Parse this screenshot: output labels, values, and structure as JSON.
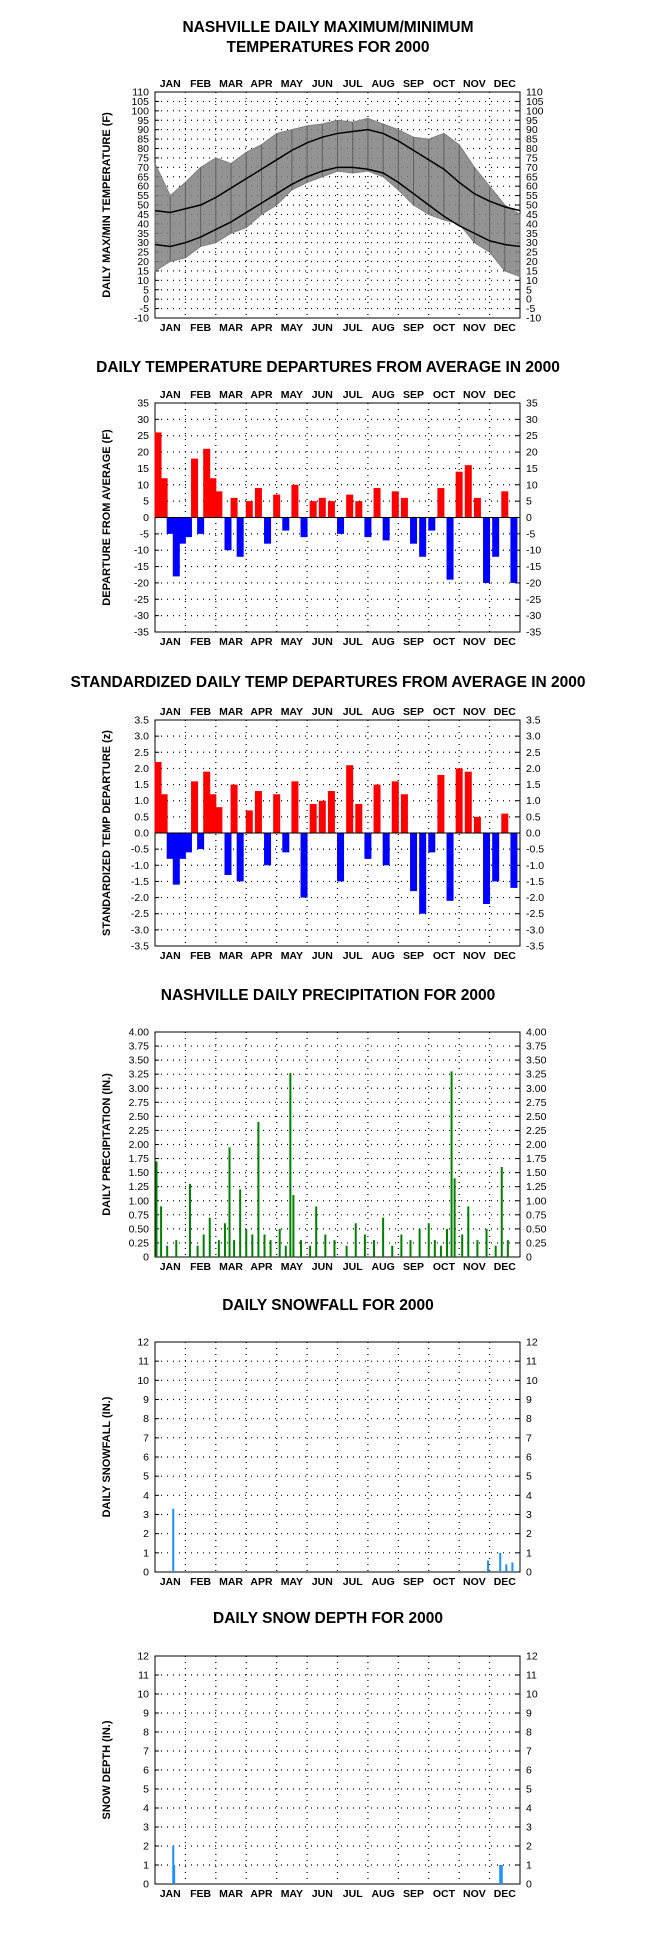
{
  "months": [
    "JAN",
    "FEB",
    "MAR",
    "APR",
    "MAY",
    "JUN",
    "JUL",
    "AUG",
    "SEP",
    "OCT",
    "NOV",
    "DEC"
  ],
  "chart_data": [
    {
      "id": "temp",
      "type": "line",
      "title_lines": [
        "NASHVILLE DAILY MAXIMUM/MINIMUM",
        "TEMPERATURES FOR 2000"
      ],
      "ylabel": "DAILY MAX/MIN TEMPERATURE (F)",
      "ylim": [
        -10,
        110
      ],
      "ticks": [
        "-10",
        "-5",
        "0",
        "5",
        "10",
        "15",
        "20",
        "25",
        "30",
        "35",
        "40",
        "45",
        "50",
        "55",
        "60",
        "65",
        "70",
        "75",
        "80",
        "85",
        "90",
        "95",
        "100",
        "105",
        "110"
      ],
      "grid": true,
      "x_unit": "month",
      "series": [
        {
          "role": "normal-high",
          "color": "#000000",
          "x": [
            0,
            0.5,
            1,
            1.5,
            2,
            2.5,
            3,
            3.5,
            4,
            4.5,
            5,
            5.5,
            6,
            6.5,
            7,
            7.5,
            8,
            8.5,
            9,
            9.5,
            10,
            10.5,
            11,
            11.5,
            12
          ],
          "values": [
            47,
            46,
            48,
            50,
            54,
            59,
            64,
            69,
            74,
            79,
            83,
            86,
            88,
            89,
            90,
            88,
            84,
            79,
            74,
            69,
            62,
            56,
            52,
            49,
            47
          ]
        },
        {
          "role": "normal-low",
          "color": "#000000",
          "x": [
            0,
            0.5,
            1,
            1.5,
            2,
            2.5,
            3,
            3.5,
            4,
            4.5,
            5,
            5.5,
            6,
            6.5,
            7,
            7.5,
            8,
            8.5,
            9,
            9.5,
            10,
            10.5,
            11,
            11.5,
            12
          ],
          "values": [
            29,
            28,
            30,
            33,
            37,
            41,
            46,
            51,
            56,
            61,
            65,
            68,
            70,
            70,
            69,
            67,
            62,
            56,
            50,
            44,
            39,
            35,
            31,
            29,
            28
          ]
        },
        {
          "role": "daily-range",
          "color": "#808080",
          "x": [
            0,
            0.5,
            1,
            1.5,
            2,
            2.5,
            3,
            3.5,
            4,
            4.5,
            5,
            5.5,
            6,
            6.5,
            7,
            7.5,
            8,
            8.5,
            9,
            9.5,
            10,
            10.5,
            11,
            11.5,
            12
          ],
          "high": [
            72,
            55,
            62,
            70,
            75,
            72,
            78,
            82,
            88,
            90,
            92,
            93,
            95,
            94,
            96,
            93,
            90,
            86,
            85,
            88,
            82,
            70,
            60,
            50,
            45
          ],
          "low": [
            15,
            20,
            22,
            28,
            30,
            35,
            38,
            45,
            50,
            58,
            62,
            65,
            68,
            67,
            68,
            65,
            58,
            50,
            45,
            42,
            40,
            30,
            25,
            15,
            12
          ]
        }
      ]
    },
    {
      "id": "dep",
      "type": "bar",
      "title_lines": [
        "DAILY TEMPERATURE DEPARTURES FROM AVERAGE IN 2000"
      ],
      "ylabel": "DEPARTURE FROM AVERAGE (F)",
      "ylim": [
        -35,
        35
      ],
      "ticks": [
        "-35",
        "-30",
        "-25",
        "-20",
        "-15",
        "-10",
        "-5",
        "0",
        "5",
        "10",
        "15",
        "20",
        "25",
        "30",
        "35"
      ],
      "grid": true,
      "pos_color": "#ff0000",
      "neg_color": "#0000ff",
      "x_unit": "month",
      "series": [
        {
          "name": "",
          "x": [
            0.1,
            0.3,
            0.5,
            0.7,
            0.9,
            1.1,
            1.3,
            1.5,
            1.7,
            1.9,
            2.1,
            2.4,
            2.6,
            2.8,
            3.1,
            3.4,
            3.7,
            4.0,
            4.3,
            4.6,
            4.9,
            5.2,
            5.5,
            5.8,
            6.1,
            6.4,
            6.7,
            7.0,
            7.3,
            7.6,
            7.9,
            8.2,
            8.5,
            8.8,
            9.1,
            9.4,
            9.7,
            10.0,
            10.3,
            10.6,
            10.9,
            11.2,
            11.5,
            11.8
          ],
          "values": [
            26,
            12,
            -5,
            -18,
            -8,
            -6,
            18,
            -5,
            21,
            12,
            8,
            -10,
            6,
            -12,
            5,
            9,
            -8,
            7,
            -4,
            10,
            -6,
            5,
            6,
            5,
            -5,
            7,
            5,
            -6,
            9,
            -7,
            8,
            6,
            -8,
            -12,
            -4,
            9,
            -19,
            14,
            16,
            6,
            -20,
            -12,
            8,
            -20
          ]
        }
      ]
    },
    {
      "id": "std",
      "type": "bar",
      "title_lines": [
        "STANDARDIZED DAILY TEMP DEPARTURES FROM AVERAGE IN 2000"
      ],
      "ylabel": "STANDARDIZED TEMP DEPARTURE (z)",
      "ylim": [
        -3.5,
        3.5
      ],
      "ticks": [
        "-3.5",
        "-3.0",
        "-2.5",
        "-2.0",
        "-1.5",
        "-1.0",
        "-0.5",
        "0.0",
        "0.5",
        "1.0",
        "1.5",
        "2.0",
        "2.5",
        "3.0",
        "3.5"
      ],
      "grid": true,
      "pos_color": "#ff0000",
      "neg_color": "#0000ff",
      "x_unit": "month",
      "series": [
        {
          "name": "",
          "x": [
            0.1,
            0.3,
            0.5,
            0.7,
            0.9,
            1.1,
            1.3,
            1.5,
            1.7,
            1.9,
            2.1,
            2.4,
            2.6,
            2.8,
            3.1,
            3.4,
            3.7,
            4.0,
            4.3,
            4.6,
            4.9,
            5.2,
            5.5,
            5.8,
            6.1,
            6.4,
            6.7,
            7.0,
            7.3,
            7.6,
            7.9,
            8.2,
            8.5,
            8.8,
            9.1,
            9.4,
            9.7,
            10.0,
            10.3,
            10.6,
            10.9,
            11.2,
            11.5,
            11.8
          ],
          "values": [
            2.2,
            1.2,
            -0.8,
            -1.6,
            -0.8,
            -0.6,
            1.6,
            -0.5,
            1.9,
            1.2,
            0.8,
            -1.3,
            1.5,
            -1.5,
            0.7,
            1.3,
            -1.0,
            1.2,
            -0.6,
            1.6,
            -2.0,
            0.9,
            1.0,
            1.3,
            -1.5,
            2.1,
            0.9,
            -0.8,
            1.5,
            -1.0,
            1.6,
            1.2,
            -1.8,
            -2.5,
            -0.6,
            1.8,
            -2.1,
            2.0,
            1.9,
            0.5,
            -2.2,
            -1.5,
            0.6,
            -1.7
          ]
        }
      ]
    },
    {
      "id": "precip",
      "type": "bar",
      "title_lines": [
        "NASHVILLE DAILY PRECIPITATION FOR 2000"
      ],
      "ylabel": "DAILY PRECIPITATION (IN.)",
      "ylim": [
        0,
        4.0
      ],
      "ticks": [
        "0",
        "0.25",
        "0.50",
        "0.75",
        "1.00",
        "1.25",
        "1.50",
        "1.75",
        "2.00",
        "2.25",
        "2.50",
        "2.75",
        "3.00",
        "3.25",
        "3.50",
        "3.75",
        "4.00"
      ],
      "grid": true,
      "bar_color": "#008000",
      "x_unit": "month",
      "series": [
        {
          "name": "",
          "x": [
            0.05,
            0.2,
            0.4,
            0.7,
            1.15,
            1.4,
            1.6,
            1.8,
            2.1,
            2.3,
            2.45,
            2.6,
            2.8,
            3.0,
            3.2,
            3.4,
            3.6,
            3.8,
            4.1,
            4.3,
            4.45,
            4.55,
            4.8,
            5.1,
            5.3,
            5.6,
            5.9,
            6.3,
            6.6,
            6.9,
            7.2,
            7.5,
            7.8,
            8.1,
            8.4,
            8.7,
            9.0,
            9.2,
            9.4,
            9.6,
            9.75,
            9.85,
            10.1,
            10.3,
            10.6,
            10.9,
            11.2,
            11.4,
            11.6
          ],
          "values": [
            1.7,
            0.9,
            0.2,
            0.3,
            1.3,
            0.2,
            0.4,
            0.7,
            0.3,
            0.6,
            1.95,
            0.3,
            1.2,
            0.5,
            0.4,
            2.4,
            0.4,
            0.3,
            0.5,
            0.2,
            3.27,
            1.1,
            0.3,
            0.2,
            0.9,
            0.4,
            0.3,
            0.2,
            0.6,
            0.4,
            0.3,
            0.7,
            0.2,
            0.4,
            0.3,
            0.5,
            0.6,
            0.3,
            0.2,
            0.5,
            3.3,
            1.4,
            0.4,
            0.9,
            0.3,
            0.5,
            0.2,
            1.6,
            0.3
          ]
        }
      ]
    },
    {
      "id": "snow",
      "type": "bar",
      "title_lines": [
        "DAILY SNOWFALL FOR 2000"
      ],
      "ylabel": "DAILY SNOWFALL (IN.)",
      "ylim": [
        0,
        12
      ],
      "ticks": [
        "0",
        "1",
        "2",
        "3",
        "4",
        "5",
        "6",
        "7",
        "8",
        "9",
        "10",
        "11",
        "12"
      ],
      "grid": true,
      "bar_color": "#1e90ff",
      "x_unit": "month",
      "series": [
        {
          "name": "",
          "x": [
            0.6,
            10.95,
            11.35,
            11.55,
            11.75
          ],
          "values": [
            3.3,
            0.6,
            1.0,
            0.4,
            0.5
          ]
        }
      ]
    },
    {
      "id": "depth",
      "type": "bar",
      "title_lines": [
        "DAILY SNOW DEPTH FOR 2000"
      ],
      "ylabel": "SNOW DEPTH (IN.)",
      "ylim": [
        0,
        12
      ],
      "ticks": [
        "0",
        "1",
        "2",
        "3",
        "4",
        "5",
        "6",
        "7",
        "8",
        "9",
        "10",
        "11",
        "12"
      ],
      "grid": true,
      "bar_color": "#1e90ff",
      "x_unit": "month",
      "series": [
        {
          "name": "",
          "x": [
            0.6,
            0.63,
            11.35,
            11.4
          ],
          "values": [
            2.0,
            1.0,
            1.0,
            1.0
          ]
        }
      ]
    }
  ]
}
